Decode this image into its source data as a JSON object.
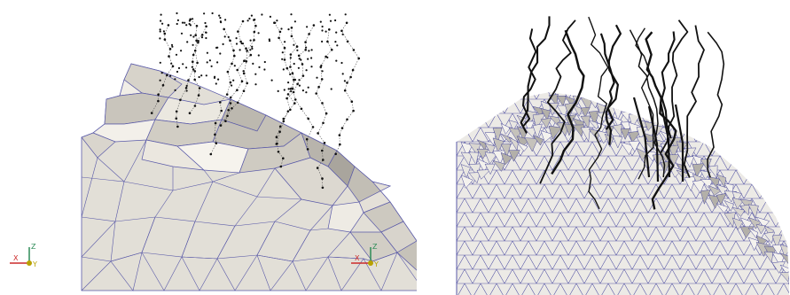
{
  "panels": [
    {
      "id": "coarse-mesh",
      "axis_triad": {
        "labels": [
          "Z",
          "X",
          "Y"
        ],
        "colors": {
          "z": "#2e8b57",
          "x": "#cc2a2a",
          "y": "#b8a100"
        }
      }
    },
    {
      "id": "fine-mesh",
      "axis_triad": {
        "labels": [
          "Z",
          "X",
          "Y"
        ],
        "colors": {
          "z": "#2e8b57",
          "x": "#cc2a2a",
          "y": "#b8a100"
        }
      }
    }
  ],
  "colors": {
    "mesh_face": "#e4e0d8",
    "mesh_face_dark": "#b8b4ac",
    "mesh_face_light": "#f1eee7",
    "mesh_edge": "#5a5aa8",
    "root_lines": "#111111",
    "background": "#ffffff"
  }
}
